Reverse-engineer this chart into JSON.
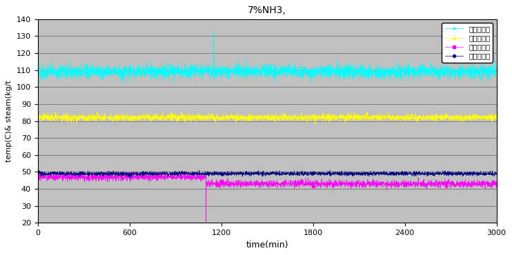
{
  "title": "7%NH3,",
  "xlabel": "time(min)",
  "ylabel": "temp(C)& steam(kg/t",
  "xlim": [
    0,
    3000
  ],
  "ylim": [
    20,
    140
  ],
  "yticks": [
    20,
    30,
    40,
    50,
    60,
    70,
    80,
    90,
    100,
    110,
    120,
    130,
    140
  ],
  "xticks": [
    0,
    600,
    1200,
    1800,
    2400,
    3000
  ],
  "legend": [
    {
      "label": "재생탕스팀",
      "color": "#000080",
      "marker": "D"
    },
    {
      "label": "농축탕스팀",
      "color": "#FF00FF",
      "marker": "s"
    },
    {
      "label": "재생탕온도",
      "color": "#FFFF00",
      "marker": "^"
    },
    {
      "label": "농축탕온도",
      "color": "#00FFFF",
      "marker": "*"
    }
  ],
  "plot_bg": "#C0C0C0",
  "fig_bg": "#FFFFFF",
  "grid_color": "#000000",
  "n_points": 3000,
  "jaesaeng_steam_base1": 49,
  "jaesaeng_steam_base2": 49,
  "jaesaeng_steam_noise": 0.6,
  "nongchuk_steam_base1": 47,
  "nongchuk_steam_base2": 43,
  "nongchuk_steam_noise": 1.0,
  "nongchuk_steam_drop": 20,
  "nongchuk_steam_spike_x": 1100,
  "jaesaeng_temp_base": 82,
  "jaesaeng_temp_noise": 1.0,
  "nongchuk_temp_base": 109,
  "nongchuk_temp_noise": 2.0,
  "nongchuk_temp_spike_x": 1150,
  "nongchuk_temp_spike_val": 132,
  "transition_x": 1100
}
